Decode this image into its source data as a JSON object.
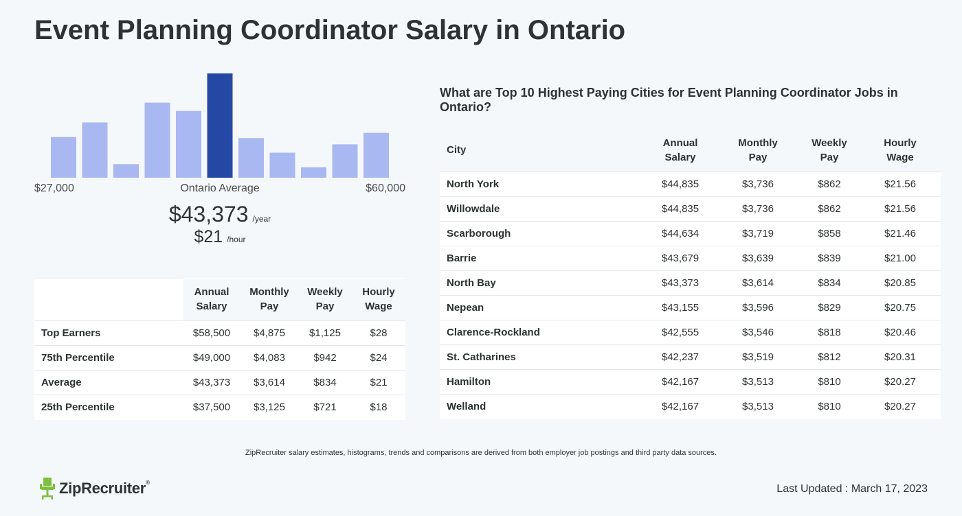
{
  "page": {
    "title": "Event Planning Coordinator Salary in Ontario",
    "footnote": "ZipRecruiter salary estimates, histograms, trends and comparisons are derived from both employer job postings and third party data sources.",
    "last_updated": "Last Updated : March 17, 2023",
    "logo_text": "ZipRecruiter",
    "logo_mark": "®"
  },
  "histogram": {
    "min_label": "$27,000",
    "mid_label": "Ontario Average",
    "max_label": "$60,000",
    "avg_year": "$43,373",
    "avg_year_unit": "/year",
    "avg_hour": "$21",
    "avg_hour_unit": "/hour"
  },
  "chart_data": {
    "type": "bar",
    "values": [
      0.39,
      0.53,
      0.13,
      0.72,
      0.64,
      1.0,
      0.38,
      0.24,
      0.1,
      0.32,
      0.43
    ],
    "highlight_index": 5,
    "xlim": [
      27000,
      60000
    ],
    "colors": {
      "bar": "#a9b8f0",
      "highlight": "#2648a5"
    }
  },
  "percentile_table": {
    "headers": [
      "",
      "Annual\nSalary",
      "Monthly\nPay",
      "Weekly\nPay",
      "Hourly\nWage"
    ],
    "rows": [
      [
        "Top Earners",
        "$58,500",
        "$4,875",
        "$1,125",
        "$28"
      ],
      [
        "75th Percentile",
        "$49,000",
        "$4,083",
        "$942",
        "$24"
      ],
      [
        "Average",
        "$43,373",
        "$3,614",
        "$834",
        "$21"
      ],
      [
        "25th Percentile",
        "$37,500",
        "$3,125",
        "$721",
        "$18"
      ]
    ]
  },
  "city_table": {
    "heading": "What are Top 10 Highest Paying Cities for Event Planning Coordinator Jobs in Ontario?",
    "headers": [
      "City",
      "Annual\nSalary",
      "Monthly\nPay",
      "Weekly\nPay",
      "Hourly\nWage"
    ],
    "rows": [
      [
        "North York",
        "$44,835",
        "$3,736",
        "$862",
        "$21.56"
      ],
      [
        "Willowdale",
        "$44,835",
        "$3,736",
        "$862",
        "$21.56"
      ],
      [
        "Scarborough",
        "$44,634",
        "$3,719",
        "$858",
        "$21.46"
      ],
      [
        "Barrie",
        "$43,679",
        "$3,639",
        "$839",
        "$21.00"
      ],
      [
        "North Bay",
        "$43,373",
        "$3,614",
        "$834",
        "$20.85"
      ],
      [
        "Nepean",
        "$43,155",
        "$3,596",
        "$829",
        "$20.75"
      ],
      [
        "Clarence-Rockland",
        "$42,555",
        "$3,546",
        "$818",
        "$20.46"
      ],
      [
        "St. Catharines",
        "$42,237",
        "$3,519",
        "$812",
        "$20.31"
      ],
      [
        "Hamilton",
        "$42,167",
        "$3,513",
        "$810",
        "$20.27"
      ],
      [
        "Welland",
        "$42,167",
        "$3,513",
        "$810",
        "$20.27"
      ]
    ]
  }
}
